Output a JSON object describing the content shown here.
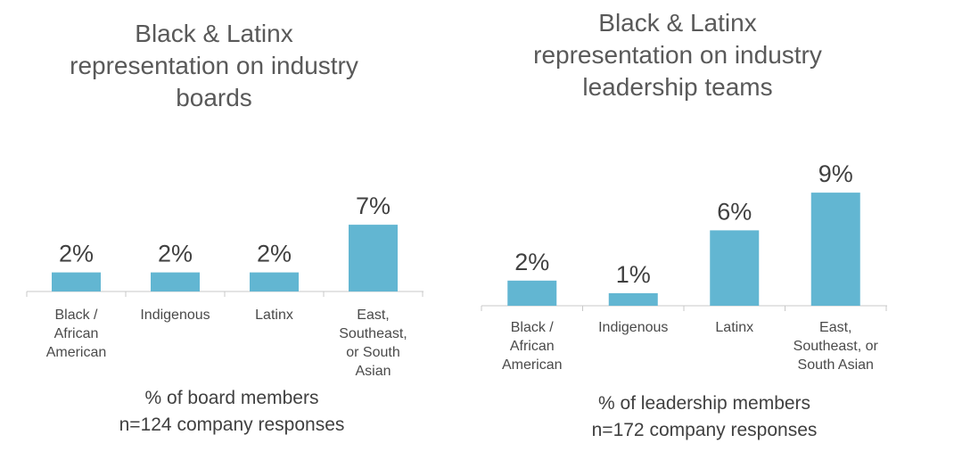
{
  "chart_data": [
    {
      "type": "bar",
      "title": "Black & Latinx\nrepresentation on industry\nboards",
      "categories": [
        [
          "Black /",
          "African",
          "American"
        ],
        [
          "Indigenous"
        ],
        [
          "Latinx"
        ],
        [
          "East,",
          "Southeast,",
          "or South",
          "Asian"
        ]
      ],
      "values": [
        2,
        2,
        2,
        7
      ],
      "data_labels": [
        "2%",
        "2%",
        "2%",
        "7%"
      ],
      "xlabel": "% of board members\nn=124 company responses",
      "ylabel": "",
      "grid": false,
      "color": "#62b6d2"
    },
    {
      "type": "bar",
      "title": "Black & Latinx\nrepresentation on industry\nleadership teams",
      "categories": [
        [
          "Black /",
          "African",
          "American"
        ],
        [
          "Indigenous"
        ],
        [
          "Latinx"
        ],
        [
          "East,",
          "Southeast, or",
          "South Asian"
        ]
      ],
      "values": [
        2,
        1,
        6,
        9
      ],
      "data_labels": [
        "2%",
        "1%",
        "6%",
        "9%"
      ],
      "xlabel": "% of leadership members\nn=172 company responses",
      "ylabel": "",
      "grid": false,
      "color": "#62b6d2"
    }
  ]
}
